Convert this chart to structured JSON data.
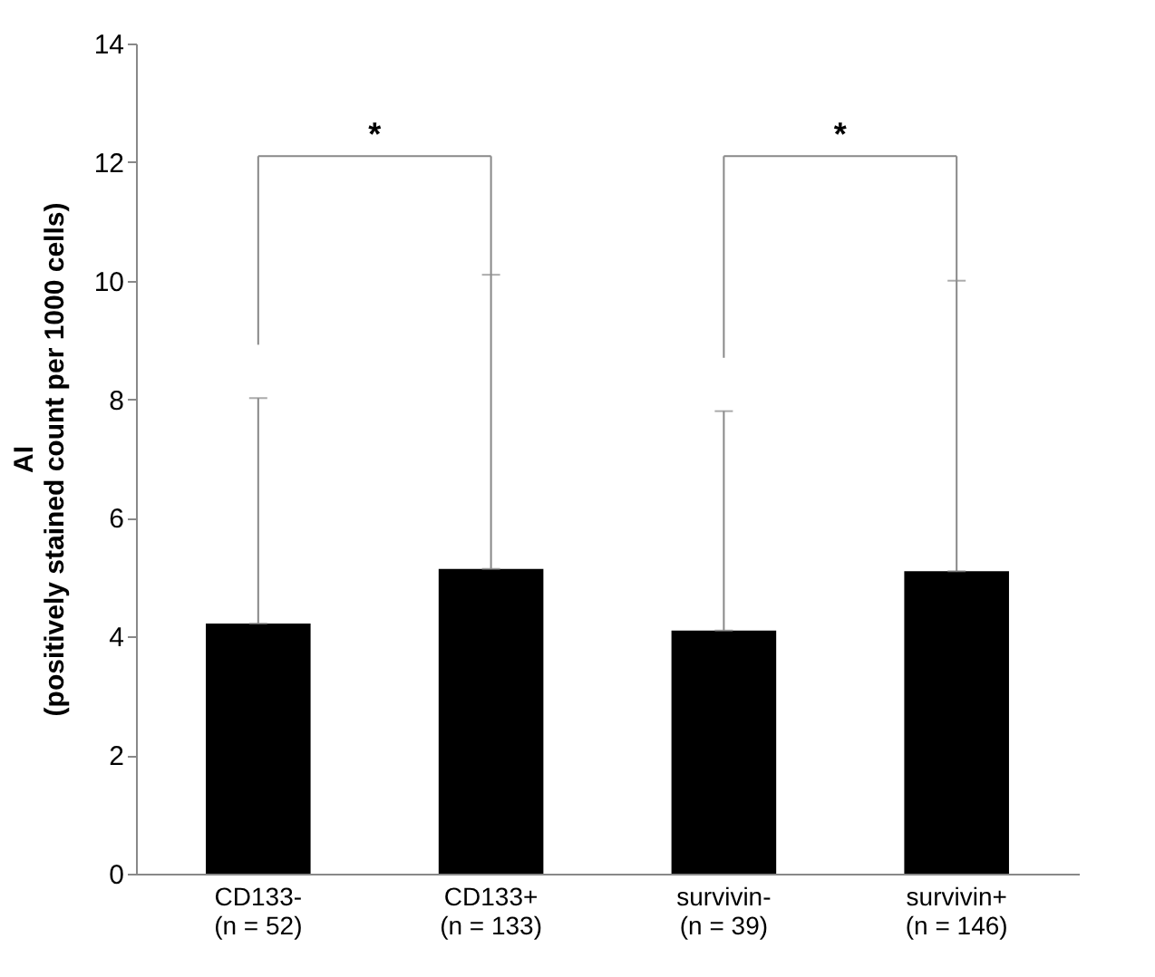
{
  "chart_data": {
    "type": "bar",
    "ylabel": "AI\n(positively stained count per 1000 cells)",
    "categories": [
      "CD133-\n(n = 52)",
      "CD133+\n(n = 133)",
      "survivin-\n(n = 39)",
      "survivin+\n(n = 146)"
    ],
    "values": [
      4.22,
      5.14,
      4.1,
      5.1
    ],
    "color": "#000000",
    "errors": [
      [
        4.22,
        8.02
      ],
      [
        5.14,
        10.1
      ],
      [
        4.1,
        7.8
      ],
      [
        5.1,
        10.0
      ]
    ],
    "annotations": [
      "*",
      "*"
    ],
    "ylim": [
      0,
      14
    ],
    "yticks": [
      0,
      2,
      4,
      6,
      8,
      10,
      12,
      14
    ],
    "grid": false
  }
}
